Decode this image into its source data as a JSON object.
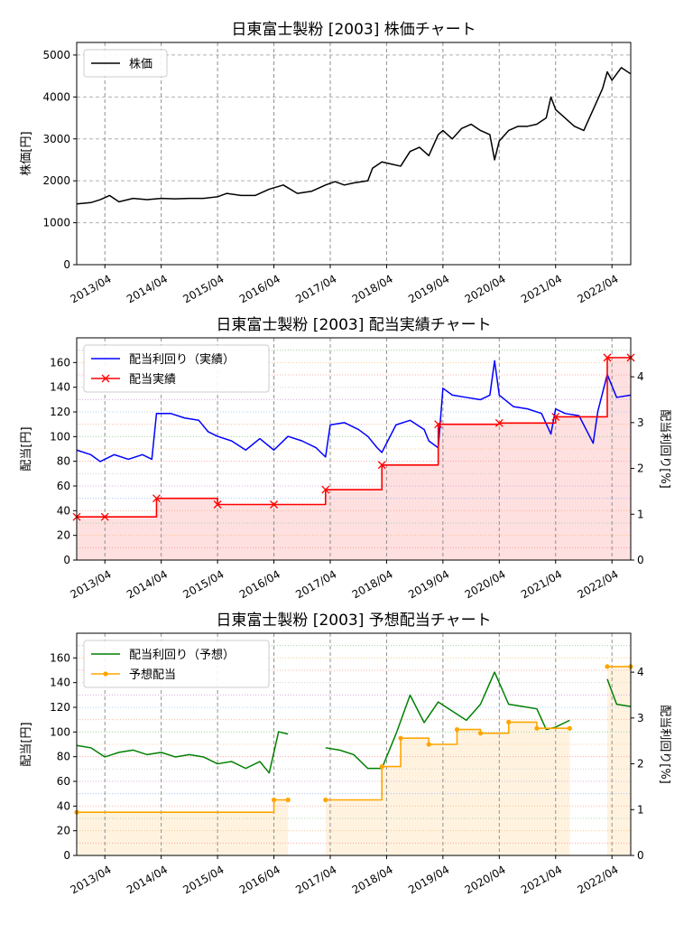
{
  "chart_data": [
    {
      "type": "line",
      "title": "日東富士製粉 [2003]  株価チャート",
      "ylabel": "株価[円]",
      "ylim": [
        0,
        5300
      ],
      "xlim": [
        "2012-10",
        "2022-08"
      ],
      "yticks": [
        0,
        1000,
        2000,
        3000,
        4000,
        5000
      ],
      "xticks": [
        "2013/04",
        "2014/04",
        "2015/04",
        "2016/04",
        "2017/04",
        "2018/04",
        "2019/04",
        "2020/04",
        "2021/04",
        "2022/04"
      ],
      "grid": true,
      "legend": "top-left",
      "series": [
        {
          "name": "株価",
          "color": "#000000",
          "x": [
            "2012-10",
            "2013-01",
            "2013-03",
            "2013-05",
            "2013-07",
            "2013-10",
            "2014-01",
            "2014-04",
            "2014-07",
            "2014-10",
            "2015-01",
            "2015-04",
            "2015-06",
            "2015-09",
            "2015-12",
            "2016-03",
            "2016-06",
            "2016-09",
            "2016-12",
            "2017-03",
            "2017-05",
            "2017-07",
            "2017-09",
            "2017-12",
            "2018-01",
            "2018-03",
            "2018-05",
            "2018-07",
            "2018-09",
            "2018-11",
            "2019-01",
            "2019-03",
            "2019-04",
            "2019-06",
            "2019-08",
            "2019-10",
            "2019-12",
            "2020-02",
            "2020-03",
            "2020-04",
            "2020-06",
            "2020-08",
            "2020-10",
            "2020-12",
            "2021-02",
            "2021-03",
            "2021-04",
            "2021-06",
            "2021-08",
            "2021-10",
            "2021-12",
            "2022-02",
            "2022-03",
            "2022-04",
            "2022-06",
            "2022-08"
          ],
          "values": [
            1450,
            1480,
            1550,
            1650,
            1500,
            1580,
            1550,
            1580,
            1570,
            1580,
            1580,
            1620,
            1700,
            1650,
            1650,
            1800,
            1900,
            1700,
            1750,
            1900,
            1980,
            1900,
            1950,
            2000,
            2300,
            2450,
            2400,
            2350,
            2700,
            2800,
            2600,
            3100,
            3200,
            3000,
            3250,
            3350,
            3200,
            3100,
            2500,
            2950,
            3200,
            3300,
            3300,
            3350,
            3500,
            4000,
            3700,
            3500,
            3300,
            3200,
            3700,
            4200,
            4600,
            4400,
            4700,
            4550
          ]
        }
      ]
    },
    {
      "type": "line",
      "title": "日東富士製粉 [2003]  配当実績チャート",
      "ylabel": "配当[円]",
      "ylabel_right": "配当利回り[%]",
      "ylim": [
        0,
        180
      ],
      "ylim_right": [
        0,
        4.85
      ],
      "yticks": [
        0,
        20,
        40,
        60,
        80,
        100,
        120,
        140,
        160
      ],
      "yticks_right": [
        0,
        1,
        2,
        3,
        4
      ],
      "xlim": [
        "2012-10",
        "2022-08"
      ],
      "xticks": [
        "2013/04",
        "2014/04",
        "2015/04",
        "2016/04",
        "2017/04",
        "2018/04",
        "2019/04",
        "2020/04",
        "2021/04",
        "2022/04"
      ],
      "grid": true,
      "legend": "top-left",
      "series": [
        {
          "name": "配当利回り（実績）",
          "color": "#0000ff",
          "axis": "right",
          "x": [
            "2012-10",
            "2013-01",
            "2013-03",
            "2013-06",
            "2013-09",
            "2013-12",
            "2014-02",
            "2014-03",
            "2014-06",
            "2014-09",
            "2014-12",
            "2015-02",
            "2015-04",
            "2015-07",
            "2015-10",
            "2016-01",
            "2016-04",
            "2016-07",
            "2016-10",
            "2017-01",
            "2017-03",
            "2017-04",
            "2017-07",
            "2017-10",
            "2017-12",
            "2018-02",
            "2018-03",
            "2018-06",
            "2018-09",
            "2018-12",
            "2019-01",
            "2019-03",
            "2019-04",
            "2019-06",
            "2019-09",
            "2019-12",
            "2020-02",
            "2020-03",
            "2020-04",
            "2020-07",
            "2020-10",
            "2021-01",
            "2021-03",
            "2021-04",
            "2021-06",
            "2021-09",
            "2021-12",
            "2022-01",
            "2022-03",
            "2022-05",
            "2022-08"
          ],
          "values": [
            2.4,
            2.3,
            2.15,
            2.3,
            2.2,
            2.3,
            2.2,
            3.2,
            3.2,
            3.1,
            3.05,
            2.8,
            2.7,
            2.6,
            2.4,
            2.65,
            2.4,
            2.7,
            2.6,
            2.45,
            2.25,
            2.95,
            3.0,
            2.85,
            2.7,
            2.45,
            2.35,
            2.95,
            3.05,
            2.85,
            2.6,
            2.45,
            3.75,
            3.6,
            3.55,
            3.5,
            3.6,
            4.35,
            3.6,
            3.35,
            3.3,
            3.2,
            2.75,
            3.3,
            3.2,
            3.15,
            2.55,
            3.25,
            4.05,
            3.55,
            3.6
          ]
        },
        {
          "name": "配当実績",
          "color": "#ff0000",
          "axis": "left",
          "step": true,
          "x": [
            "2012-10",
            "2013-04",
            "2014-03",
            "2015-04",
            "2016-04",
            "2017-03",
            "2018-03",
            "2019-03",
            "2020-04",
            "2021-04",
            "2022-03",
            "2022-08"
          ],
          "values": [
            35,
            35,
            50,
            45,
            45,
            57,
            77,
            110,
            111,
            116,
            164,
            164
          ]
        }
      ]
    },
    {
      "type": "line",
      "title": "日東富士製粉 [2003]  予想配当チャート",
      "ylabel": "配当[円]",
      "ylabel_right": "配当利回り[%]",
      "ylim": [
        0,
        180
      ],
      "ylim_right": [
        0,
        4.85
      ],
      "yticks": [
        0,
        20,
        40,
        60,
        80,
        100,
        120,
        140,
        160
      ],
      "yticks_right": [
        0,
        1,
        2,
        3,
        4
      ],
      "xlim": [
        "2012-10",
        "2022-08"
      ],
      "xticks": [
        "2013/04",
        "2014/04",
        "2015/04",
        "2016/04",
        "2017/04",
        "2018/04",
        "2019/04",
        "2020/04",
        "2021/04",
        "2022/04"
      ],
      "grid": true,
      "legend": "top-left",
      "series": [
        {
          "name": "配当利回り（予想）",
          "color": "#008000",
          "axis": "right",
          "segments": [
            {
              "x": [
                "2012-10",
                "2013-01",
                "2013-04",
                "2013-07",
                "2013-10",
                "2014-01",
                "2014-04",
                "2014-07",
                "2014-10",
                "2015-01",
                "2015-04",
                "2015-07",
                "2015-10",
                "2016-01",
                "2016-03",
                "2016-05",
                "2016-07"
              ],
              "values": [
                2.4,
                2.35,
                2.15,
                2.25,
                2.3,
                2.2,
                2.25,
                2.15,
                2.2,
                2.15,
                2.0,
                2.05,
                1.9,
                2.05,
                1.8,
                2.7,
                2.65
              ]
            },
            {
              "x": [
                "2017-03",
                "2017-06",
                "2017-09",
                "2017-12",
                "2018-03",
                "2018-06",
                "2018-09",
                "2018-12",
                "2019-03",
                "2019-06",
                "2019-09",
                "2019-12",
                "2020-03",
                "2020-06",
                "2020-09",
                "2020-12",
                "2021-02",
                "2021-04",
                "2021-07"
              ],
              "values": [
                2.35,
                2.3,
                2.2,
                1.9,
                1.9,
                2.65,
                3.5,
                2.9,
                3.35,
                3.15,
                2.95,
                3.3,
                4.0,
                3.3,
                3.25,
                3.2,
                2.75,
                2.8,
                2.95
              ]
            },
            {
              "x": [
                "2022-03",
                "2022-05",
                "2022-08"
              ],
              "values": [
                3.85,
                3.3,
                3.25
              ]
            }
          ]
        },
        {
          "name": "予想配当",
          "color": "#ffa500",
          "axis": "left",
          "step": true,
          "segments": [
            {
              "x": [
                "2012-10",
                "2016-04",
                "2016-07"
              ],
              "values": [
                35,
                45,
                45
              ]
            },
            {
              "x": [
                "2017-03",
                "2018-03",
                "2018-07",
                "2019-01",
                "2019-07",
                "2019-12",
                "2020-06",
                "2020-12",
                "2021-07"
              ],
              "values": [
                45,
                72,
                95,
                90,
                102,
                99,
                108,
                103,
                103
              ]
            },
            {
              "x": [
                "2022-03",
                "2022-08"
              ],
              "values": [
                153,
                153
              ]
            }
          ]
        }
      ]
    }
  ]
}
